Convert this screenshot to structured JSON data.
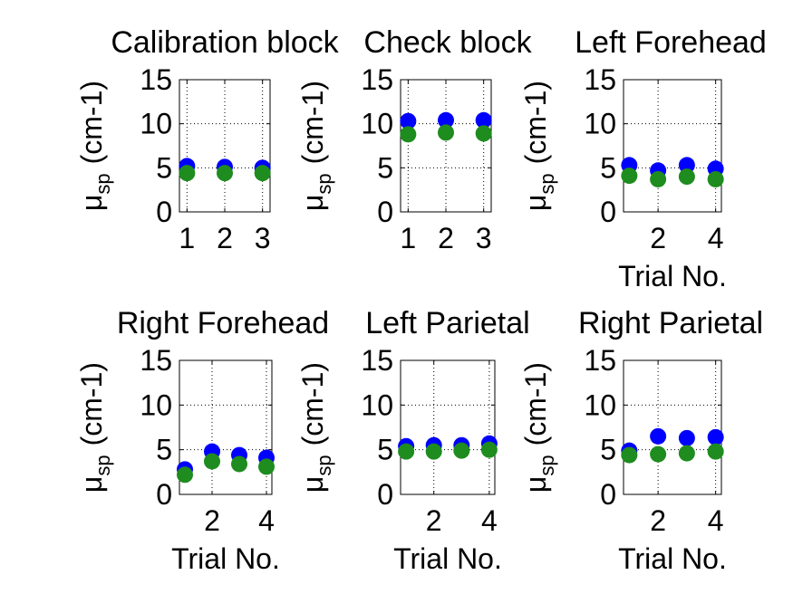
{
  "chart_data": [
    {
      "type": "scatter",
      "title": "Calibration block",
      "ylabel": {
        "symbol": "μ",
        "subscript": "sp",
        "unit": "(cm-1)"
      },
      "xlabel": "",
      "xlim": [
        0.8,
        3.2
      ],
      "ylim": [
        0,
        15
      ],
      "xticks": [
        "1",
        "2",
        "3"
      ],
      "yticks": [
        "0",
        "5",
        "10",
        "15"
      ],
      "grid": true,
      "series": [
        {
          "color": "#0000ff",
          "x": [
            1,
            2,
            3
          ],
          "y": [
            5.2,
            5.1,
            5.0
          ]
        },
        {
          "color": "#1e8c1e",
          "x": [
            1,
            2,
            3
          ],
          "y": [
            4.4,
            4.4,
            4.4
          ]
        }
      ]
    },
    {
      "type": "scatter",
      "title": "Check block",
      "ylabel": {
        "symbol": "μ",
        "subscript": "sp",
        "unit": "(cm-1)"
      },
      "xlabel": "",
      "xlim": [
        0.8,
        3.2
      ],
      "ylim": [
        0,
        15
      ],
      "xticks": [
        "1",
        "2",
        "3"
      ],
      "yticks": [
        "0",
        "5",
        "10",
        "15"
      ],
      "grid": true,
      "series": [
        {
          "color": "#0000ff",
          "x": [
            1,
            2,
            3
          ],
          "y": [
            10.3,
            10.4,
            10.4
          ]
        },
        {
          "color": "#1e8c1e",
          "x": [
            1,
            2,
            3
          ],
          "y": [
            8.8,
            9.0,
            8.9
          ]
        }
      ]
    },
    {
      "type": "scatter",
      "title": "Left Forehead",
      "ylabel": {
        "symbol": "μ",
        "subscript": "sp",
        "unit": "(cm-1)"
      },
      "xlabel": "Trial No.",
      "xlim": [
        0.8,
        4.2
      ],
      "ylim": [
        0,
        15
      ],
      "xticks": [
        "2",
        "4"
      ],
      "yticks": [
        "0",
        "5",
        "10",
        "15"
      ],
      "grid": true,
      "series": [
        {
          "color": "#0000ff",
          "x": [
            1,
            2,
            3,
            4
          ],
          "y": [
            5.3,
            4.7,
            5.3,
            4.9
          ]
        },
        {
          "color": "#1e8c1e",
          "x": [
            1,
            2,
            3,
            4
          ],
          "y": [
            4.1,
            3.7,
            4.0,
            3.7
          ]
        }
      ]
    },
    {
      "type": "scatter",
      "title": "Right Forehead",
      "ylabel": {
        "symbol": "μ",
        "subscript": "sp",
        "unit": "(cm-1)"
      },
      "xlabel": "Trial No.",
      "xlim": [
        0.8,
        4.2
      ],
      "ylim": [
        0,
        15
      ],
      "xticks": [
        "2",
        "4"
      ],
      "yticks": [
        "0",
        "5",
        "10",
        "15"
      ],
      "grid": true,
      "series": [
        {
          "color": "#0000ff",
          "x": [
            1,
            2,
            3,
            4
          ],
          "y": [
            2.8,
            4.8,
            4.4,
            4.1
          ]
        },
        {
          "color": "#1e8c1e",
          "x": [
            1,
            2,
            3,
            4
          ],
          "y": [
            2.2,
            3.7,
            3.4,
            3.1
          ]
        }
      ]
    },
    {
      "type": "scatter",
      "title": "Left Parietal",
      "ylabel": {
        "symbol": "μ",
        "subscript": "sp",
        "unit": "(cm-1)"
      },
      "xlabel": "Trial No.",
      "xlim": [
        0.8,
        4.2
      ],
      "ylim": [
        0,
        15
      ],
      "xticks": [
        "2",
        "4"
      ],
      "yticks": [
        "0",
        "5",
        "10",
        "15"
      ],
      "grid": true,
      "series": [
        {
          "color": "#0000ff",
          "x": [
            1,
            2,
            3,
            4
          ],
          "y": [
            5.4,
            5.5,
            5.5,
            5.7
          ]
        },
        {
          "color": "#1e8c1e",
          "x": [
            1,
            2,
            3,
            4
          ],
          "y": [
            4.8,
            4.8,
            4.9,
            5.0
          ]
        }
      ]
    },
    {
      "type": "scatter",
      "title": "Right Parietal",
      "ylabel": {
        "symbol": "μ",
        "subscript": "sp",
        "unit": "(cm-1)"
      },
      "xlabel": "Trial No.",
      "xlim": [
        0.8,
        4.2
      ],
      "ylim": [
        0,
        15
      ],
      "xticks": [
        "2",
        "4"
      ],
      "yticks": [
        "0",
        "5",
        "10",
        "15"
      ],
      "grid": true,
      "series": [
        {
          "color": "#0000ff",
          "x": [
            1,
            2,
            3,
            4
          ],
          "y": [
            4.9,
            6.5,
            6.3,
            6.4
          ]
        },
        {
          "color": "#1e8c1e",
          "x": [
            1,
            2,
            3,
            4
          ],
          "y": [
            4.4,
            4.5,
            4.6,
            4.8
          ]
        }
      ]
    }
  ]
}
